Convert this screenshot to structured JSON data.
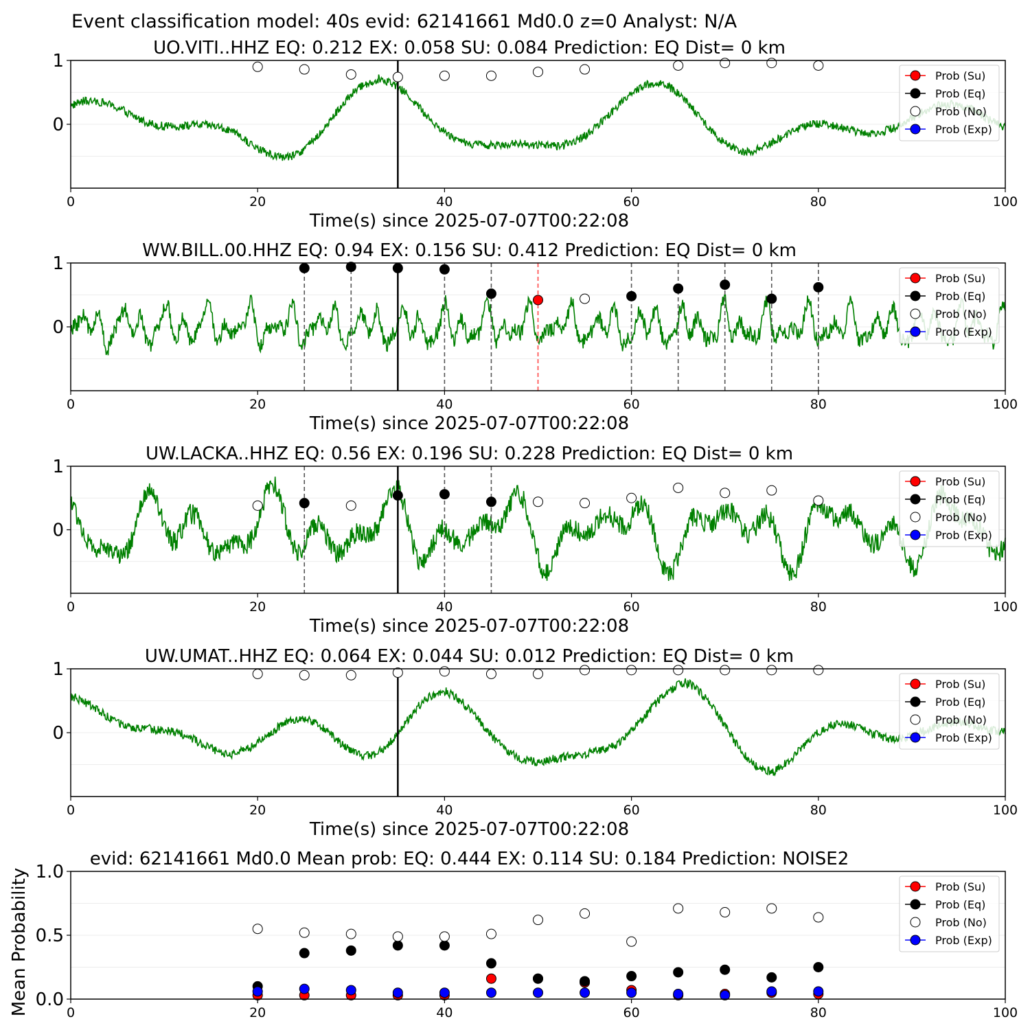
{
  "figure_title": "Event classification model: 40s evid: 62141661 Md0.0 z=0 Analyst: N/A",
  "legend_entries": [
    {
      "label": "Prob (Su)",
      "color": "#ff0000"
    },
    {
      "label": "Prob (Eq)",
      "color": "#000000"
    },
    {
      "label": "Prob (No)",
      "color": "#ffffff"
    },
    {
      "label": "Prob (Exp)",
      "color": "#0000ff"
    }
  ],
  "colors": {
    "waveform": "#008000",
    "eq_pick": "#555555",
    "su_pick": "#ff4444",
    "reference_line": "#000000"
  },
  "chart_data": [
    {
      "type": "line",
      "title": "UO.VITI..HHZ   EQ: 0.212  EX: 0.058  SU: 0.084   Prediction: EQ    Dist= 0 km",
      "xlabel": "Time(s) since 2025-07-07T00:22:08",
      "ylabel": "",
      "xlim": [
        0,
        100
      ],
      "ylim": [
        -1,
        1
      ],
      "xticks": [
        0,
        20,
        40,
        60,
        80,
        100
      ],
      "yticks": [
        {
          "value": 0,
          "label": "0"
        },
        {
          "value": 1,
          "label": "1"
        }
      ],
      "waveform_style": "smooth",
      "reference_line": 35,
      "eq_picks": [],
      "su_picks": [],
      "points": [
        {
          "x": 20,
          "y": 0.9,
          "class": "No"
        },
        {
          "x": 25,
          "y": 0.86,
          "class": "No"
        },
        {
          "x": 30,
          "y": 0.78,
          "class": "No"
        },
        {
          "x": 35,
          "y": 0.74,
          "class": "No"
        },
        {
          "x": 40,
          "y": 0.76,
          "class": "No"
        },
        {
          "x": 45,
          "y": 0.76,
          "class": "No"
        },
        {
          "x": 50,
          "y": 0.82,
          "class": "No"
        },
        {
          "x": 55,
          "y": 0.86,
          "class": "No"
        },
        {
          "x": 65,
          "y": 0.92,
          "class": "No"
        },
        {
          "x": 70,
          "y": 0.96,
          "class": "No"
        },
        {
          "x": 75,
          "y": 0.96,
          "class": "No"
        },
        {
          "x": 80,
          "y": 0.92,
          "class": "No"
        }
      ]
    },
    {
      "type": "line",
      "title": "WW.BILL.00.HHZ   EQ: 0.94  EX: 0.156  SU: 0.412   Prediction: EQ    Dist= 0 km",
      "xlabel": "Time(s) since 2025-07-07T00:22:08",
      "ylabel": "",
      "xlim": [
        0,
        100
      ],
      "ylim": [
        -1,
        1
      ],
      "xticks": [
        0,
        20,
        40,
        60,
        80,
        100
      ],
      "yticks": [
        {
          "value": 0,
          "label": "0"
        },
        {
          "value": 1,
          "label": "1"
        }
      ],
      "waveform_style": "noise",
      "reference_line": 35,
      "eq_picks": [
        25,
        30,
        40,
        45,
        60,
        65,
        70,
        75,
        80
      ],
      "su_picks": [
        50
      ],
      "points": [
        {
          "x": 25,
          "y": 0.92,
          "class": "Eq"
        },
        {
          "x": 30,
          "y": 0.94,
          "class": "Eq"
        },
        {
          "x": 35,
          "y": 0.92,
          "class": "Eq"
        },
        {
          "x": 40,
          "y": 0.9,
          "class": "Eq"
        },
        {
          "x": 45,
          "y": 0.52,
          "class": "Eq"
        },
        {
          "x": 50,
          "y": 0.42,
          "class": "Su"
        },
        {
          "x": 55,
          "y": 0.44,
          "class": "No"
        },
        {
          "x": 60,
          "y": 0.48,
          "class": "Eq"
        },
        {
          "x": 65,
          "y": 0.6,
          "class": "Eq"
        },
        {
          "x": 70,
          "y": 0.66,
          "class": "Eq"
        },
        {
          "x": 75,
          "y": 0.44,
          "class": "Eq"
        },
        {
          "x": 80,
          "y": 0.62,
          "class": "Eq"
        }
      ]
    },
    {
      "type": "line",
      "title": "UW.LACKA..HHZ   EQ: 0.56  EX: 0.196  SU: 0.228   Prediction: EQ    Dist= 0 km",
      "xlabel": "Time(s) since 2025-07-07T00:22:08",
      "ylabel": "",
      "xlim": [
        0,
        100
      ],
      "ylim": [
        -1,
        1
      ],
      "xticks": [
        0,
        20,
        40,
        60,
        80,
        100
      ],
      "yticks": [
        {
          "value": 0,
          "label": "0"
        },
        {
          "value": 1,
          "label": "1"
        }
      ],
      "waveform_style": "busy",
      "reference_line": 35,
      "eq_picks": [
        25,
        40,
        45
      ],
      "su_picks": [],
      "points": [
        {
          "x": 20,
          "y": 0.38,
          "class": "No"
        },
        {
          "x": 25,
          "y": 0.42,
          "class": "Eq"
        },
        {
          "x": 30,
          "y": 0.38,
          "class": "No"
        },
        {
          "x": 35,
          "y": 0.54,
          "class": "Eq"
        },
        {
          "x": 40,
          "y": 0.56,
          "class": "Eq"
        },
        {
          "x": 45,
          "y": 0.44,
          "class": "Eq"
        },
        {
          "x": 50,
          "y": 0.44,
          "class": "No"
        },
        {
          "x": 55,
          "y": 0.42,
          "class": "No"
        },
        {
          "x": 60,
          "y": 0.5,
          "class": "No"
        },
        {
          "x": 65,
          "y": 0.66,
          "class": "No"
        },
        {
          "x": 70,
          "y": 0.58,
          "class": "No"
        },
        {
          "x": 75,
          "y": 0.62,
          "class": "No"
        },
        {
          "x": 80,
          "y": 0.46,
          "class": "No"
        }
      ]
    },
    {
      "type": "line",
      "title": "UW.UMAT..HHZ   EQ: 0.064  EX: 0.044  SU: 0.012   Prediction: EQ    Dist= 0 km",
      "xlabel": "Time(s) since 2025-07-07T00:22:08",
      "ylabel": "",
      "xlim": [
        0,
        100
      ],
      "ylim": [
        -1,
        1
      ],
      "xticks": [
        0,
        20,
        40,
        60,
        80,
        100
      ],
      "yticks": [
        {
          "value": 0,
          "label": "0"
        },
        {
          "value": 1,
          "label": "1"
        }
      ],
      "waveform_style": "smooth",
      "reference_line": 35,
      "eq_picks": [],
      "su_picks": [],
      "points": [
        {
          "x": 20,
          "y": 0.92,
          "class": "No"
        },
        {
          "x": 25,
          "y": 0.9,
          "class": "No"
        },
        {
          "x": 30,
          "y": 0.9,
          "class": "No"
        },
        {
          "x": 35,
          "y": 0.94,
          "class": "No"
        },
        {
          "x": 40,
          "y": 0.96,
          "class": "No"
        },
        {
          "x": 45,
          "y": 0.92,
          "class": "No"
        },
        {
          "x": 50,
          "y": 0.92,
          "class": "No"
        },
        {
          "x": 55,
          "y": 0.98,
          "class": "No"
        },
        {
          "x": 60,
          "y": 0.98,
          "class": "No"
        },
        {
          "x": 65,
          "y": 0.98,
          "class": "No"
        },
        {
          "x": 70,
          "y": 0.98,
          "class": "No"
        },
        {
          "x": 75,
          "y": 0.98,
          "class": "No"
        },
        {
          "x": 80,
          "y": 0.98,
          "class": "No"
        }
      ]
    },
    {
      "type": "scatter",
      "title": "evid: 62141661  Md0.0   Mean prob:   EQ: 0.444  EX: 0.114  SU: 0.184   Prediction: NOISE2",
      "xlabel": "",
      "ylabel": "Mean Probability",
      "xlim": [
        0,
        100
      ],
      "ylim": [
        0,
        1
      ],
      "xticks": [
        0,
        20,
        40,
        60,
        80,
        100
      ],
      "yticks": [
        {
          "value": 0,
          "label": "0.0"
        },
        {
          "value": 0.5,
          "label": "0.5"
        },
        {
          "value": 1,
          "label": "1.0"
        }
      ],
      "x": [
        20,
        25,
        30,
        35,
        40,
        45,
        50,
        55,
        60,
        65,
        70,
        75,
        80
      ],
      "series": [
        {
          "name": "Prob (Su)",
          "values": [
            0.03,
            0.03,
            0.03,
            0.03,
            0.03,
            0.16,
            0.16,
            0.13,
            0.07,
            0.03,
            0.04,
            0.05,
            0.04
          ]
        },
        {
          "name": "Prob (Eq)",
          "values": [
            0.1,
            0.36,
            0.38,
            0.42,
            0.42,
            0.28,
            0.16,
            0.14,
            0.18,
            0.21,
            0.23,
            0.17,
            0.25
          ]
        },
        {
          "name": "Prob (No)",
          "values": [
            0.55,
            0.52,
            0.51,
            0.49,
            0.49,
            0.51,
            0.62,
            0.67,
            0.45,
            0.71,
            0.68,
            0.71,
            0.64
          ]
        },
        {
          "name": "Prob (Exp)",
          "values": [
            0.06,
            0.08,
            0.07,
            0.05,
            0.05,
            0.05,
            0.05,
            0.05,
            0.05,
            0.04,
            0.03,
            0.06,
            0.06
          ]
        }
      ]
    }
  ]
}
